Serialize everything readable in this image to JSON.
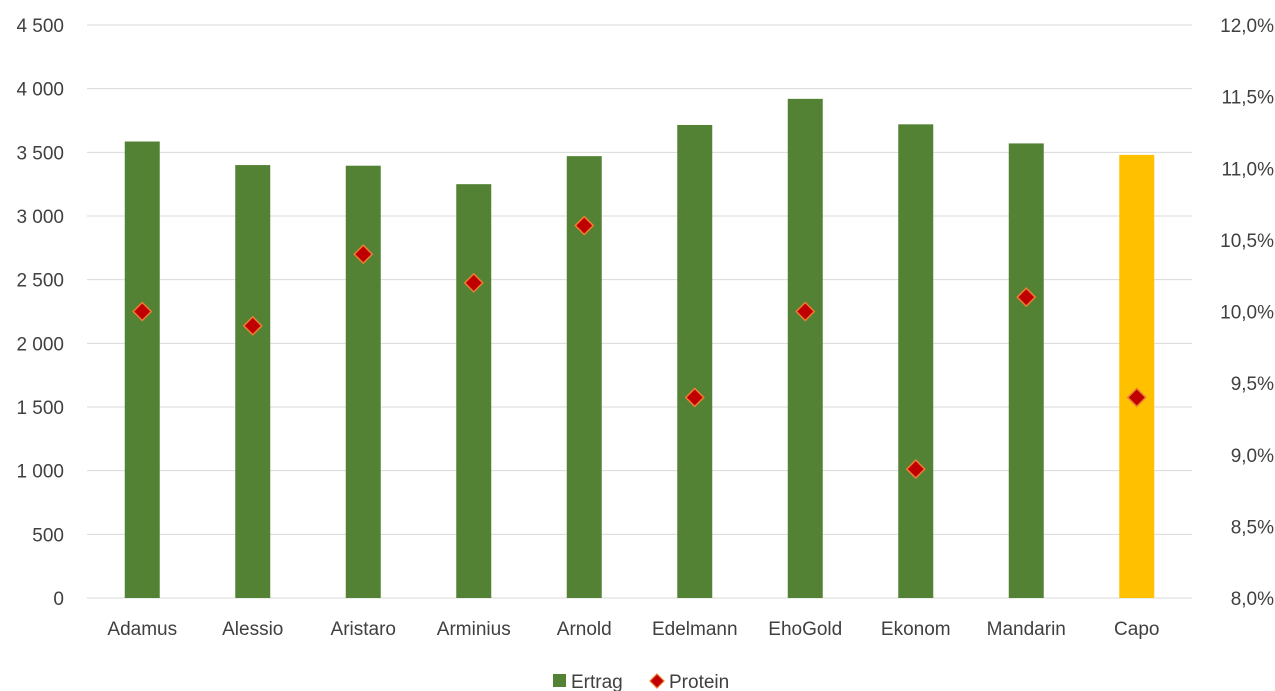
{
  "chart_data": {
    "type": "bar",
    "categories": [
      "Adamus",
      "Alessio",
      "Aristaro",
      "Arminius",
      "Arnold",
      "Edelmann",
      "EhoGold",
      "Ekonom",
      "Mandarin",
      "Capo"
    ],
    "series": [
      {
        "name": "Ertrag",
        "type": "bar",
        "axis": "left",
        "values": [
          3585,
          3400,
          3395,
          3250,
          3470,
          3715,
          3920,
          3720,
          3570,
          3480
        ],
        "colors": [
          "#548235",
          "#548235",
          "#548235",
          "#548235",
          "#548235",
          "#548235",
          "#548235",
          "#548235",
          "#548235",
          "#FFC000"
        ]
      },
      {
        "name": "Protein",
        "type": "scatter",
        "axis": "right",
        "values": [
          10.0,
          9.9,
          10.4,
          10.2,
          10.6,
          9.4,
          10.0,
          8.9,
          10.1,
          9.4
        ],
        "unit": "%",
        "marker": "diamond",
        "color": "#C00000",
        "stroke": "#ED7D31"
      }
    ],
    "y_left": {
      "min": 0,
      "max": 4500,
      "step": 500,
      "tick_labels": [
        "0",
        "500",
        "1 000",
        "1 500",
        "2 000",
        "2 500",
        "3 000",
        "3 500",
        "4 000",
        "4 500"
      ]
    },
    "y_right": {
      "min": 8.0,
      "max": 12.0,
      "step": 0.5,
      "tick_labels": [
        "8,0%",
        "8,5%",
        "9,0%",
        "9,5%",
        "10,0%",
        "10,5%",
        "11,0%",
        "11,5%",
        "12,0%"
      ]
    },
    "grid": true,
    "legend": {
      "position": "bottom",
      "entries": [
        {
          "label": "Ertrag",
          "color": "#548235",
          "marker": "square"
        },
        {
          "label": "Protein",
          "color": "#C00000",
          "marker": "diamond"
        }
      ]
    }
  }
}
